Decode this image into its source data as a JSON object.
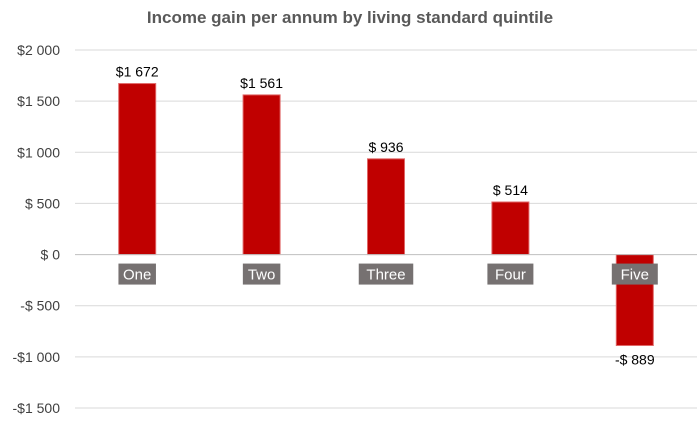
{
  "chart_data": {
    "type": "bar",
    "title": "Income gain per annum by living standard quintile",
    "xlabel": "",
    "ylabel": "",
    "categories": [
      "One",
      "Two",
      "Three",
      "Four",
      "Five"
    ],
    "values": [
      1672,
      1561,
      936,
      514,
      -889
    ],
    "data_labels": [
      "$1 672",
      "$1 561",
      "$ 936",
      "$ 514",
      "-$ 889"
    ],
    "ylim": [
      -1500,
      2000
    ],
    "yticks": [
      2000,
      1500,
      1000,
      500,
      0,
      -500,
      -1000,
      -1500
    ],
    "ytick_labels": [
      "$2 000",
      "$1 500",
      "$1 000",
      "$ 500",
      "$ 0",
      "-$ 500",
      "-$1 000",
      "-$1 500"
    ],
    "grid": true,
    "legend": "none",
    "colors": {
      "bar": "#c00000",
      "bar_edge": "#e06666",
      "category_box": "#767171",
      "gridline": "#d9d9d9",
      "axis_line": "#bfbfbf"
    }
  }
}
